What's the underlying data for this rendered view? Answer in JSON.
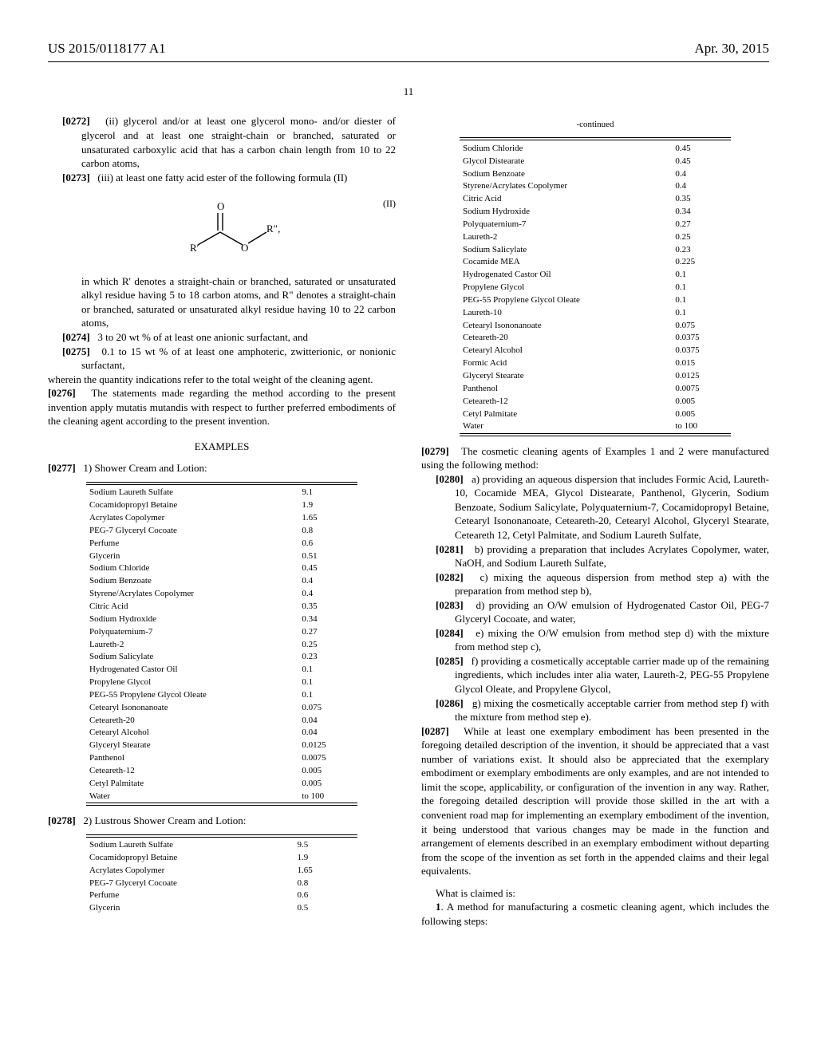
{
  "header": {
    "pubno": "US 2015/0118177 A1",
    "date": "Apr. 30, 2015"
  },
  "pageNumber": "11",
  "left": {
    "p0272": "(ii) glycerol and/or at least one glycerol mono- and/or diester of glycerol and at least one straight-chain or branched, saturated or unsaturated carboxylic acid that has a carbon chain length from 10 to 22 carbon atoms,",
    "p0273": "(iii) at least one fatty acid ester of the following formula (II)",
    "formulaLabel": "(II)",
    "formulaR1": "R′",
    "formulaR2": "R″,",
    "formulaO1": "O",
    "formulaO2": "O",
    "postFormula": "in which R' denotes a straight-chain or branched, saturated or unsaturated alkyl residue having 5 to 18 carbon atoms, and R\" denotes a straight-chain or branched, saturated or unsaturated alkyl residue having 10 to 22 carbon atoms,",
    "p0274": "3 to 20 wt % of at least one anionic surfactant, and",
    "p0275": "0.1 to 15 wt % of at least one amphoteric, zwitterionic, or nonionic surfactant,",
    "wherein": "wherein the quantity indications refer to the total weight of the cleaning agent.",
    "p0276": "The statements made regarding the method according to the present invention apply mutatis mutandis with respect to further preferred embodiments of the cleaning agent according to the present invention.",
    "examplesHdr": "EXAMPLES",
    "p0277": "1) Shower Cream and Lotion:",
    "table1": {
      "rows": [
        [
          "Sodium Laureth Sulfate",
          "9.1"
        ],
        [
          "Cocamidopropyl Betaine",
          "1.9"
        ],
        [
          "Acrylates Copolymer",
          "1.65"
        ],
        [
          "PEG-7 Glyceryl Cocoate",
          "0.8"
        ],
        [
          "Perfume",
          "0.6"
        ],
        [
          "Glycerin",
          "0.51"
        ],
        [
          "Sodium Chloride",
          "0.45"
        ],
        [
          "Sodium Benzoate",
          "0.4"
        ],
        [
          "Styrene/Acrylates Copolymer",
          "0.4"
        ],
        [
          "Citric Acid",
          "0.35"
        ],
        [
          "Sodium Hydroxide",
          "0.34"
        ],
        [
          "Polyquaternium-7",
          "0.27"
        ],
        [
          "Laureth-2",
          "0.25"
        ],
        [
          "Sodium Salicylate",
          "0.23"
        ],
        [
          "Hydrogenated Castor Oil",
          "0.1"
        ],
        [
          "Propylene Glycol",
          "0.1"
        ],
        [
          "PEG-55 Propylene Glycol Oleate",
          "0.1"
        ],
        [
          "Cetearyl Isononanoate",
          "0.075"
        ],
        [
          "Ceteareth-20",
          "0.04"
        ],
        [
          "Cetearyl Alcohol",
          "0.04"
        ],
        [
          "Glyceryl Stearate",
          "0.0125"
        ],
        [
          "Panthenol",
          "0.0075"
        ],
        [
          "Ceteareth-12",
          "0.005"
        ],
        [
          "Cetyl Palmitate",
          "0.005"
        ],
        [
          "Water",
          "to 100"
        ]
      ]
    },
    "p0278": "2) Lustrous Shower Cream and Lotion:",
    "table2": {
      "rows": [
        [
          "Sodium Laureth Sulfate",
          "9.5"
        ],
        [
          "Cocamidopropyl Betaine",
          "1.9"
        ],
        [
          "Acrylates Copolymer",
          "1.65"
        ],
        [
          "PEG-7 Glyceryl Cocoate",
          "0.8"
        ],
        [
          "Perfume",
          "0.6"
        ],
        [
          "Glycerin",
          "0.5"
        ]
      ]
    }
  },
  "right": {
    "continued": "-continued",
    "table2cont": {
      "rows": [
        [
          "Sodium Chloride",
          "0.45"
        ],
        [
          "Glycol Distearate",
          "0.45"
        ],
        [
          "Sodium Benzoate",
          "0.4"
        ],
        [
          "Styrene/Acrylates Copolymer",
          "0.4"
        ],
        [
          "Citric Acid",
          "0.35"
        ],
        [
          "Sodium Hydroxide",
          "0.34"
        ],
        [
          "Polyquaternium-7",
          "0.27"
        ],
        [
          "Laureth-2",
          "0.25"
        ],
        [
          "Sodium Salicylate",
          "0.23"
        ],
        [
          "Cocamide MEA",
          "0.225"
        ],
        [
          "Hydrogenated Castor Oil",
          "0.1"
        ],
        [
          "Propylene Glycol",
          "0.1"
        ],
        [
          "PEG-55 Propylene Glycol Oleate",
          "0.1"
        ],
        [
          "Laureth-10",
          "0.1"
        ],
        [
          "Cetearyl Isononanoate",
          "0.075"
        ],
        [
          "Ceteareth-20",
          "0.0375"
        ],
        [
          "Cetearyl Alcohol",
          "0.0375"
        ],
        [
          "Formic Acid",
          "0.015"
        ],
        [
          "Glyceryl Stearate",
          "0.0125"
        ],
        [
          "Panthenol",
          "0.0075"
        ],
        [
          "Ceteareth-12",
          "0.005"
        ],
        [
          "Cetyl Palmitate",
          "0.005"
        ],
        [
          "Water",
          "to 100"
        ]
      ]
    },
    "p0279": "The cosmetic cleaning agents of Examples 1 and 2 were manufactured using the following method:",
    "p0280": "a) providing an aqueous dispersion that includes Formic Acid, Laureth-10, Cocamide MEA, Glycol Distearate, Panthenol, Glycerin, Sodium Benzoate, Sodium Salicylate, Polyquaternium-7, Cocamidopropyl Betaine, Cetearyl Isononanoate, Ceteareth-20, Cetearyl Alcohol, Glyceryl Stearate, Ceteareth 12, Cetyl Palmitate, and Sodium Laureth Sulfate,",
    "p0281": "b) providing a preparation that includes Acrylates Copolymer, water, NaOH, and Sodium Laureth Sulfate,",
    "p0282": "c) mixing the aqueous dispersion from method step a) with the preparation from method step b),",
    "p0283": "d) providing an O/W emulsion of Hydrogenated Castor Oil, PEG-7 Glyceryl Cocoate, and water,",
    "p0284": "e) mixing the O/W emulsion from method step d) with the mixture from method step c),",
    "p0285": "f) providing a cosmetically acceptable carrier made up of the remaining ingredients, which includes inter alia water, Laureth-2, PEG-55 Propylene Glycol Oleate, and Propylene Glycol,",
    "p0286": "g) mixing the cosmetically acceptable carrier from method step f) with the mixture from method step e).",
    "p0287": "While at least one exemplary embodiment has been presented in the foregoing detailed description of the invention, it should be appreciated that a vast number of variations exist. It should also be appreciated that the exemplary embodiment or exemplary embodiments are only examples, and are not intended to limit the scope, applicability, or configuration of the invention in any way. Rather, the foregoing detailed description will provide those skilled in the art with a convenient road map for implementing an exemplary embodiment of the invention, it being understood that various changes may be made in the function and arrangement of elements described in an exemplary embodiment without departing from the scope of the invention as set forth in the appended claims and their legal equivalents.",
    "claimsIntro": "What is claimed is:",
    "claim1": "A method for manufacturing a cosmetic cleaning agent, which includes the following steps:"
  },
  "labels": {
    "n0272": "[0272]",
    "n0273": "[0273]",
    "n0274": "[0274]",
    "n0275": "[0275]",
    "n0276": "[0276]",
    "n0277": "[0277]",
    "n0278": "[0278]",
    "n0279": "[0279]",
    "n0280": "[0280]",
    "n0281": "[0281]",
    "n0282": "[0282]",
    "n0283": "[0283]",
    "n0284": "[0284]",
    "n0285": "[0285]",
    "n0286": "[0286]",
    "n0287": "[0287]",
    "claim1no": "1"
  }
}
